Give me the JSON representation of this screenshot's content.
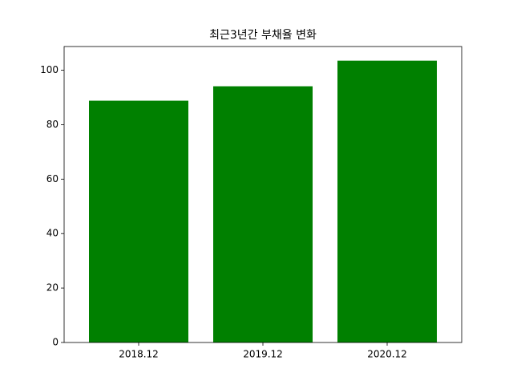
{
  "chart_data": {
    "type": "bar",
    "title": "최근3년간 부채율 변화",
    "categories": [
      "2018.12",
      "2019.12",
      "2020.12"
    ],
    "values": [
      88.8,
      94.1,
      103.5
    ],
    "color": "#008000",
    "ylim": [
      0,
      108.7
    ],
    "yticks": [
      0,
      20,
      40,
      60,
      80,
      100
    ],
    "grid": false
  }
}
